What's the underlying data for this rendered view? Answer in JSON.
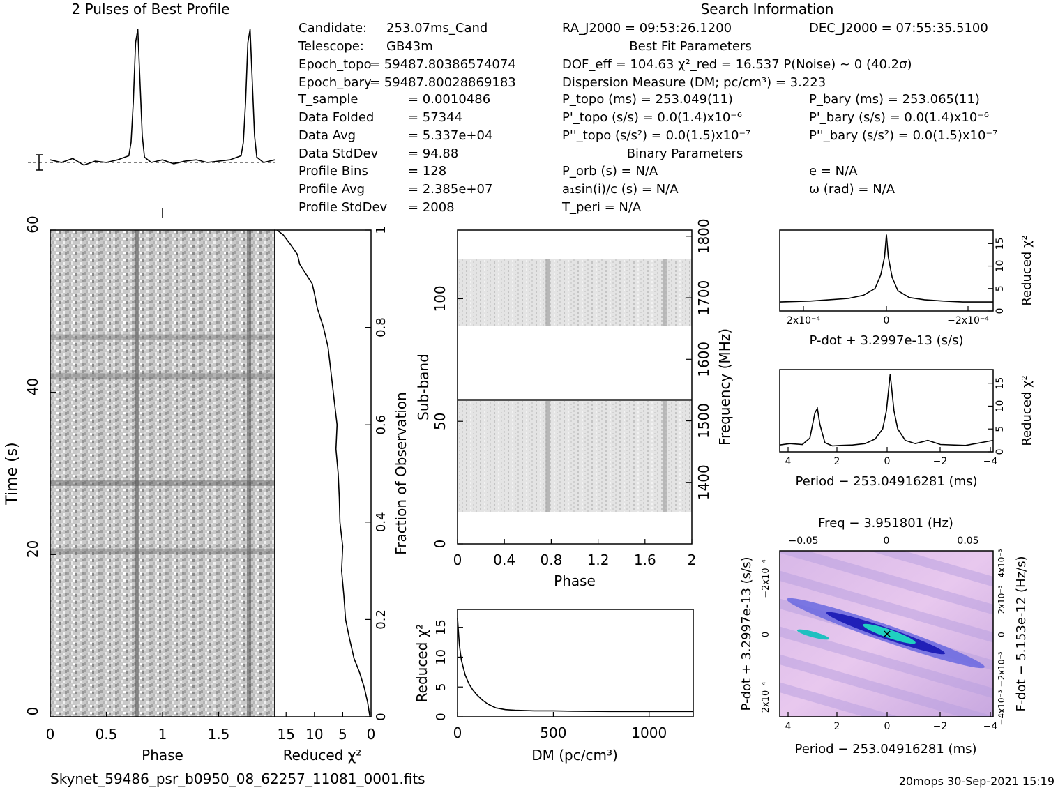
{
  "header": {
    "profile_title": "2 Pulses of Best Profile",
    "search_title": "Search Information",
    "best_fit_title": "Best Fit Parameters",
    "binary_title": "Binary Parameters"
  },
  "candidate_info": [
    {
      "label": "Candidate:",
      "value": "253.07ms_Cand"
    },
    {
      "label": "Telescope:",
      "value": "GB43m"
    },
    {
      "label": "Epoch_topo",
      "value": "= 59487.80386574074"
    },
    {
      "label": "Epoch_bary",
      "value": "= 59487.80028869183"
    },
    {
      "label": "T_sample",
      "value": "=  0.0010486"
    },
    {
      "label": "Data Folded",
      "value": "=  57344"
    },
    {
      "label": "Data Avg",
      "value": "=  5.337e+04"
    },
    {
      "label": "Data StdDev",
      "value": "=  94.88"
    },
    {
      "label": "Profile Bins",
      "value": "=  128"
    },
    {
      "label": "Profile Avg",
      "value": "=  2.385e+07"
    },
    {
      "label": "Profile StdDev",
      "value": "=  2008"
    }
  ],
  "search_info": {
    "ra": "RA_J2000 = 09:53:26.1200",
    "dec": "DEC_J2000 = 07:55:35.5100",
    "dof": "DOF_eff = 104.63  χ²_red = 16.537  P(Noise) ~ 0   (40.2σ)",
    "dm": "Dispersion Measure (DM; pc/cm³) = 3.223",
    "p_topo": "P_topo (ms) =  253.049(11)",
    "p_bary": "P_bary (ms) =  253.065(11)",
    "pd_topo": "P'_topo (s/s) = 0.0(1.4)x10⁻⁶",
    "pd_bary": "P'_bary (s/s) = 0.0(1.4)x10⁻⁶",
    "pdd_topo": "P''_topo (s/s²) = 0.0(1.5)x10⁻⁷",
    "pdd_bary": "P''_bary (s/s²) = 0.0(1.5)x10⁻⁷",
    "p_orb": "P_orb (s) = N/A",
    "ecc": "e = N/A",
    "a1sini": "a₁sin(i)/c (s) = N/A",
    "omega": "ω (rad) = N/A",
    "t_peri": "T_peri = N/A"
  },
  "footer": {
    "filename": "Skynet_59486_psr_b0950_08_62257_11081_0001.fits",
    "stamp": "20mops 30-Sep-2021 15:19"
  },
  "colors": {
    "ink": "#000000",
    "contour_bg": "#f0c8f0",
    "contour_mid": "#7070e8",
    "contour_deep": "#2020c0",
    "contour_peak": "#20d0c0"
  },
  "chart_data": [
    {
      "id": "profile",
      "type": "line",
      "title": "2 Pulses of Best Profile",
      "x": [
        0,
        0.1,
        0.2,
        0.3,
        0.4,
        0.5,
        0.6,
        0.7,
        0.72,
        0.74,
        0.76,
        0.78,
        0.8,
        0.82,
        0.84,
        0.9,
        1.0,
        1.1,
        1.2,
        1.3,
        1.4,
        1.5,
        1.6,
        1.7,
        1.72,
        1.74,
        1.76,
        1.78,
        1.8,
        1.82,
        1.84,
        1.9,
        2.0
      ],
      "values": [
        0.02,
        0.0,
        0.03,
        -0.02,
        0.01,
        0.0,
        0.02,
        0.05,
        0.15,
        0.45,
        0.9,
        1.0,
        0.6,
        0.2,
        0.04,
        0.0,
        0.02,
        -0.01,
        0.01,
        0.02,
        0.0,
        0.01,
        0.02,
        0.05,
        0.15,
        0.45,
        0.9,
        1.0,
        0.6,
        0.2,
        0.04,
        0.0,
        0.02
      ]
    },
    {
      "id": "time_phase",
      "type": "heatmap",
      "xlabel": "Phase",
      "ylabel": "Time (s)",
      "xlim": [
        0,
        2
      ],
      "ylim": [
        0,
        60
      ],
      "x_ticks": [
        "0",
        "0.5",
        "1",
        "1.5"
      ],
      "y_ticks": [
        "0",
        "20",
        "40",
        "60"
      ]
    },
    {
      "id": "chi_vs_time",
      "type": "line",
      "xlabel": "Reduced χ²",
      "ylabel": "Fraction of Observation",
      "xlim": [
        17,
        0
      ],
      "ylim": [
        0,
        1
      ],
      "x_ticks": [
        "15",
        "10",
        "5",
        "0"
      ],
      "y_ticks": [
        "0",
        "0.2",
        "0.4",
        "0.6",
        "0.8",
        "1"
      ],
      "x": [
        0.2,
        0.6,
        1.2,
        2.0,
        3.0,
        3.8,
        4.5,
        4.8,
        5.2,
        5.0,
        5.5,
        5.6,
        5.8,
        6.2,
        6.0,
        6.5,
        7.0,
        7.2,
        7.6,
        8.4,
        9.5,
        10.0,
        10.4,
        11.5,
        12.6,
        13.0,
        14.2,
        15.5,
        16.6
      ],
      "values": [
        0.0,
        0.03,
        0.06,
        0.09,
        0.12,
        0.16,
        0.2,
        0.25,
        0.3,
        0.35,
        0.4,
        0.45,
        0.5,
        0.55,
        0.6,
        0.65,
        0.7,
        0.72,
        0.76,
        0.8,
        0.84,
        0.87,
        0.89,
        0.91,
        0.93,
        0.95,
        0.97,
        0.99,
        1.0
      ]
    },
    {
      "id": "subband_phase",
      "type": "heatmap",
      "xlabel": "Phase",
      "ylabel": "Sub-band",
      "y2label": "Frequency (MHz)",
      "xlim": [
        0,
        2
      ],
      "ylim": [
        0,
        128
      ],
      "y2lim": [
        1300,
        1810
      ],
      "x_ticks": [
        "0",
        "0.4",
        "0.8",
        "1.2",
        "1.6",
        "2"
      ],
      "y_ticks": [
        "0",
        "50",
        "100"
      ],
      "y2_ticks": [
        "1400",
        "1500",
        "1600",
        "1700",
        "1800"
      ]
    },
    {
      "id": "dm_curve",
      "type": "line",
      "xlabel": "DM (pc/cm³)",
      "ylabel": "Reduced χ²",
      "xlim": [
        0,
        1230
      ],
      "ylim": [
        0,
        18
      ],
      "x_ticks": [
        "0",
        "500",
        "1000"
      ],
      "y_ticks": [
        "0",
        "5",
        "10",
        "15"
      ],
      "x": [
        0,
        10,
        20,
        40,
        60,
        80,
        100,
        130,
        160,
        200,
        250,
        300,
        400,
        500,
        600,
        800,
        1000,
        1230
      ],
      "values": [
        16.5,
        12,
        9.5,
        7,
        5.5,
        4.5,
        3.7,
        2.8,
        2.1,
        1.5,
        1.2,
        1.1,
        1.0,
        1.0,
        0.95,
        0.9,
        0.9,
        0.9
      ]
    },
    {
      "id": "pdot_chi",
      "type": "line",
      "xlabel": "P-dot + 3.2997e-13 (s/s)",
      "ylabel": "Reduced χ²",
      "xlim": [
        0.00028,
        -0.00028
      ],
      "ylim": [
        0,
        18
      ],
      "x_ticks": [
        "2x10⁻⁴",
        "0",
        "−2x10⁻⁴"
      ],
      "y_ticks": [
        "0",
        "5",
        "10",
        "15"
      ],
      "x": [
        0.00028,
        0.0002,
        0.00015,
        0.0001,
        6e-05,
        3e-05,
        1.5e-05,
        5e-06,
        0,
        -5e-06,
        -1.5e-05,
        -3e-05,
        -6e-05,
        -0.0001,
        -0.00015,
        -0.0002,
        -0.00028
      ],
      "values": [
        2.0,
        2.2,
        2.5,
        2.8,
        3.5,
        5.0,
        8.0,
        12,
        17,
        12,
        7.5,
        4.5,
        3.0,
        2.5,
        2.2,
        2.0,
        2.0
      ]
    },
    {
      "id": "period_chi",
      "type": "line",
      "xlabel": "Period − 253.04916281 (ms)",
      "ylabel": "Reduced χ²",
      "xlim": [
        4.4,
        -4.1
      ],
      "ylim": [
        0,
        18
      ],
      "x_ticks": [
        "4",
        "2",
        "0",
        "−2",
        "−4"
      ],
      "y_ticks": [
        "0",
        "5",
        "10",
        "15"
      ],
      "x": [
        4.4,
        4,
        3.5,
        3.2,
        3.0,
        2.9,
        2.8,
        2.6,
        2.3,
        2,
        1.5,
        1.0,
        0.6,
        0.3,
        0.15,
        0,
        -0.15,
        -0.3,
        -0.6,
        -1.0,
        -1.5,
        -2,
        -3,
        -4.1
      ],
      "values": [
        1.5,
        1.8,
        1.6,
        3.0,
        8.5,
        9.5,
        6.0,
        2.0,
        1.3,
        1.4,
        1.5,
        1.8,
        2.8,
        5.0,
        9.0,
        17,
        9.0,
        5.0,
        2.5,
        1.8,
        2.5,
        1.6,
        1.4,
        2.5
      ]
    },
    {
      "id": "pp_contour",
      "type": "heatmap",
      "xlabel": "Period − 253.04916281 (ms)",
      "ylabel": "P-dot + 3.2997e-13 (s/s)",
      "top_label": "Freq − 3.951801 (Hz)",
      "right_label": "F-dot − 5.153e-12 (Hz/s)",
      "xlim": [
        4.4,
        -4.1
      ],
      "top_ticks": [
        "−0.05",
        "0",
        "0.05"
      ],
      "x_ticks": [
        "4",
        "2",
        "0",
        "−2",
        "−4"
      ],
      "y_ticks": [
        "−2x10⁻⁴",
        "0",
        "2x10⁻⁴"
      ],
      "right_ticks": [
        "4x10⁻³",
        "2x10⁻³",
        "0",
        "−2x10⁻³",
        "−4x10⁻³"
      ]
    }
  ]
}
